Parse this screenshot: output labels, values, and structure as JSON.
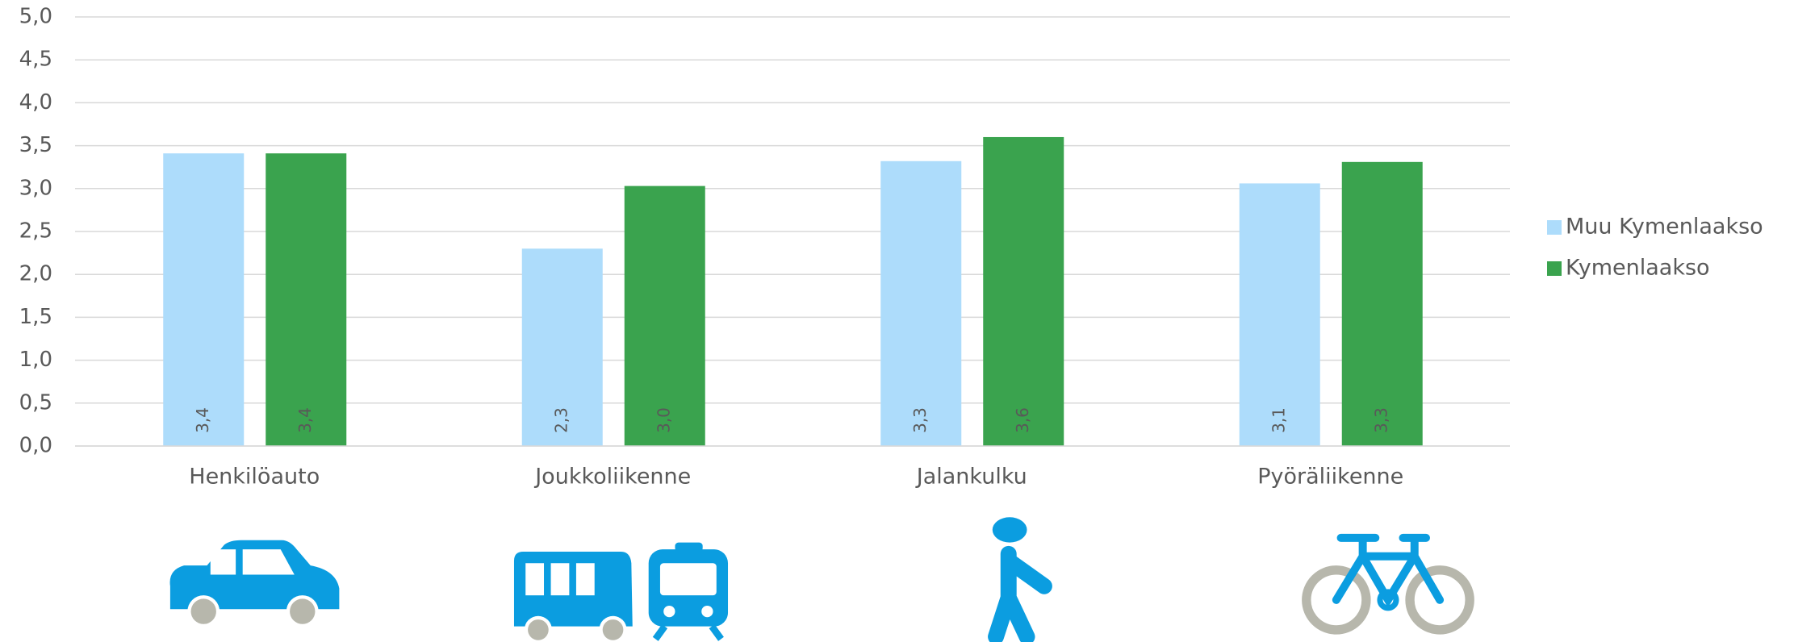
{
  "chart_data": {
    "type": "bar",
    "categories": [
      "Henkilöauto",
      "Joukkoliikenne",
      "Jalankulku",
      "Pyöräliikenne"
    ],
    "series": [
      {
        "name": "Muu Kymenlaakso",
        "color": "#addcfb",
        "values": [
          3.41,
          2.3,
          3.32,
          3.06
        ],
        "value_labels": [
          "3,4",
          "2,3",
          "3,3",
          "3,1"
        ]
      },
      {
        "name": "Kymenlaakso",
        "color": "#3aa34e",
        "values": [
          3.41,
          3.03,
          3.6,
          3.31
        ],
        "value_labels": [
          "3,4",
          "3,0",
          "3,6",
          "3,3"
        ]
      }
    ],
    "ylim": [
      0,
      5
    ],
    "yticks": [
      {
        "value": 0,
        "label": "0,0"
      },
      {
        "value": 0.5,
        "label": "0,5"
      },
      {
        "value": 1,
        "label": "1,0"
      },
      {
        "value": 1.5,
        "label": "1,5"
      },
      {
        "value": 2,
        "label": "2,0"
      },
      {
        "value": 2.5,
        "label": "2,5"
      },
      {
        "value": 3,
        "label": "3,0"
      },
      {
        "value": 3.5,
        "label": "3,5"
      },
      {
        "value": 4,
        "label": "4,0"
      },
      {
        "value": 4.5,
        "label": "4,5"
      },
      {
        "value": 5,
        "label": "5,0"
      }
    ],
    "grid": true,
    "legend": "right"
  }
}
